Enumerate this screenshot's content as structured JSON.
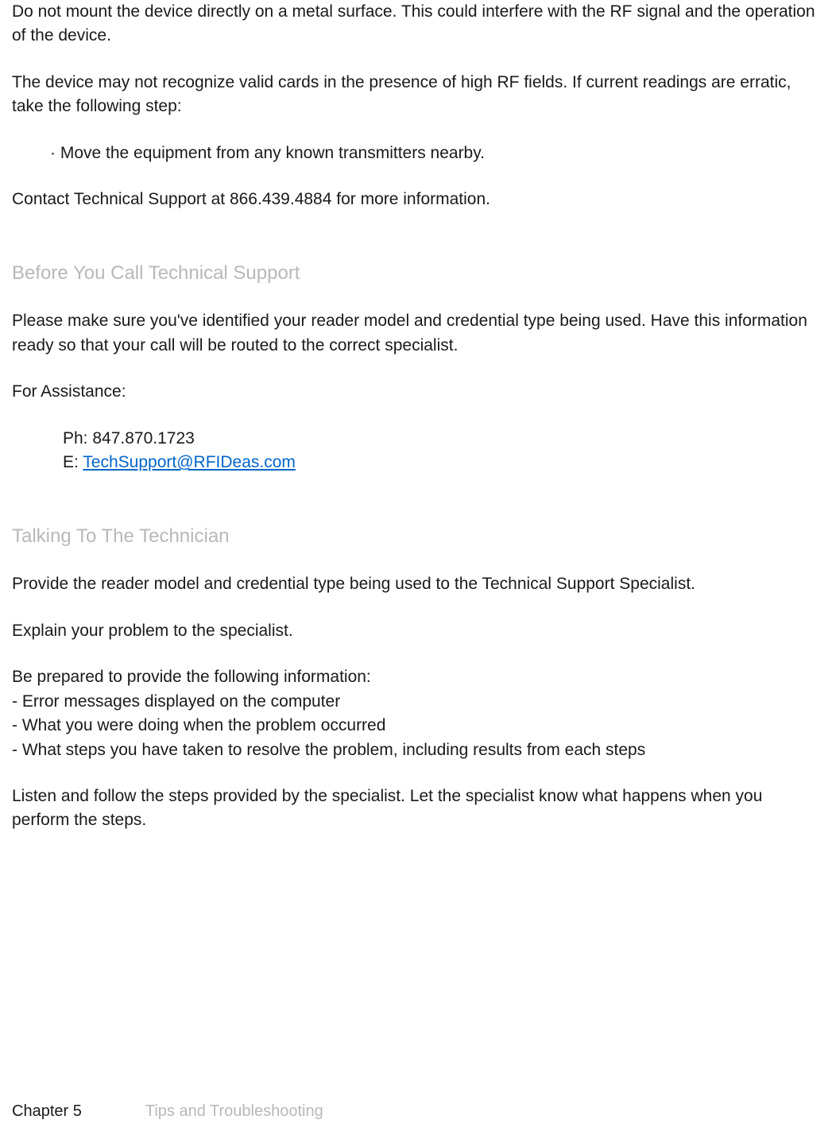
{
  "intro": {
    "para1": "Do not mount the device directly on a metal surface. This could interfere with the RF signal and the operation of the device.",
    "para2": "The device may not recognize valid cards in the presence of high RF fields. If current readings are erratic, take the following step:",
    "bullet": "· Move the equipment from any known transmitters nearby.",
    "para3": "Contact Technical Support at 866.439.4884 for more information."
  },
  "section1": {
    "heading": "Before You Call Technical Support",
    "para1": "Please make sure you've identified your reader model and credential type being used. Have this information ready so that your call will be routed to the correct specialist.",
    "assistance_label": "For Assistance:",
    "phone": "Ph: 847.870.1723",
    "email_prefix": "E: ",
    "email": "TechSupport@RFIDeas.com"
  },
  "section2": {
    "heading": "Talking To The Technician",
    "para1": "Provide the reader model and credential type being used to the Technical Support Specialist.",
    "para2": "Explain your problem to the specialist.",
    "list_intro": "Be prepared to provide the following information:",
    "item1": "- Error messages displayed on the computer",
    "item2": "- What you were doing when the problem occurred",
    "item3": "- What steps you have taken to resolve the problem, including results from each steps",
    "para3": "Listen and follow the steps provided by the specialist. Let the specialist know what happens when you perform the steps."
  },
  "footer": {
    "chapter": "Chapter 5",
    "title": "Tips and Troubleshooting"
  }
}
